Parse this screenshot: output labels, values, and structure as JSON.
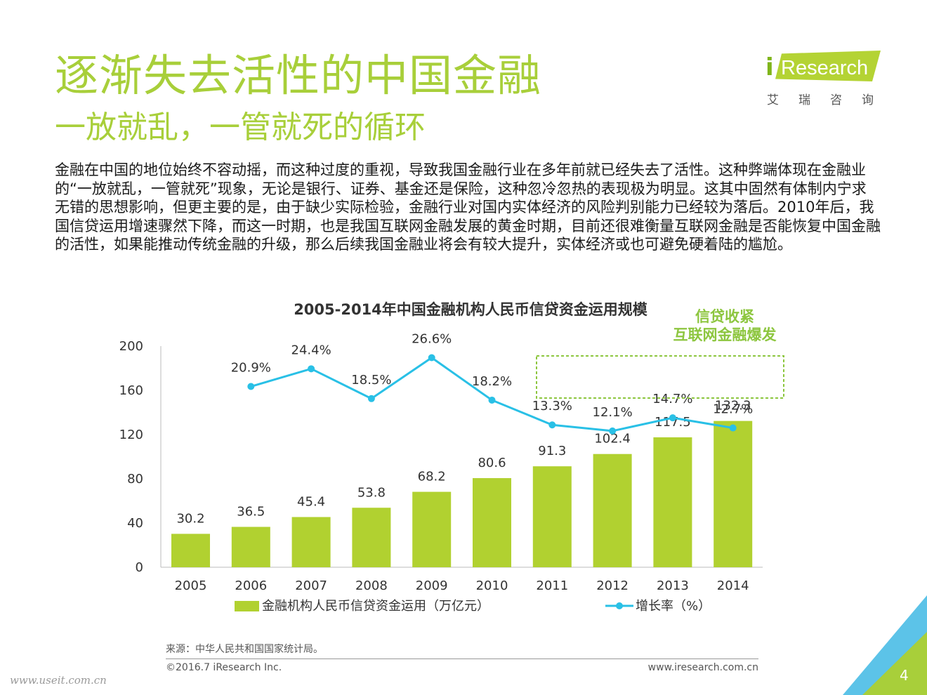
{
  "page": {
    "title": "逐渐失去活性的中国金融",
    "subtitle": "一放就乱，一管就死的循环",
    "body": "金融在中国的地位始终不容动摇，而这种过度的重视，导致我国金融行业在多年前就已经失去了活性。这种弊端体现在金融业的“一放就乱，一管就死”现象，无论是银行、证券、基金还是保险，这种忽冷忽热的表现极为明显。这其中固然有体制内宁求无错的思想影响，但更主要的是，由于缺少实际检验，金融行业对国内实体经济的风险判别能力已经较为落后。2010年后，我国信贷运用增速骤然下降，而这一时期，也是我国互联网金融发展的黄金时期，目前还很难衡量互联网金融是否能恢复中国金融的活性，如果能推动传统金融的升级，那么后续我国金融业将会有较大提升，实体经济或也可避免硬着陆的尴尬。",
    "page_number": "4"
  },
  "logo": {
    "brand_prefix": "i",
    "brand_word": "Research",
    "chinese_name": "艾瑞咨询"
  },
  "chart_data": {
    "type": "bar",
    "title": "2005-2014年中国金融机构人民币信贷资金运用规模",
    "categories": [
      "2005",
      "2006",
      "2007",
      "2008",
      "2009",
      "2010",
      "2011",
      "2012",
      "2013",
      "2014"
    ],
    "series": [
      {
        "name": "金融机构人民币信贷资金运用（万亿元）",
        "type": "bar",
        "values": [
          30.2,
          36.5,
          45.4,
          53.8,
          68.2,
          80.6,
          91.3,
          102.4,
          117.5,
          132.3
        ],
        "labels": [
          "30.2",
          "36.5",
          "45.4",
          "53.8",
          "68.2",
          "80.6",
          "91.3",
          "102.4",
          "117.5",
          "132.3"
        ]
      },
      {
        "name": "增长率（%）",
        "type": "line",
        "values": [
          null,
          20.9,
          24.4,
          18.5,
          26.6,
          18.2,
          13.3,
          12.1,
          14.7,
          12.7
        ],
        "labels": [
          "",
          "20.9%",
          "24.4%",
          "18.5%",
          "26.6%",
          "18.2%",
          "13.3%",
          "12.1%",
          "14.7%",
          "12.7%"
        ]
      }
    ],
    "y_ticks": [
      "0",
      "40",
      "80",
      "120",
      "160",
      "200"
    ],
    "ylim": [
      0,
      200
    ],
    "annotation": [
      "信贷收紧",
      "互联网金融爆发"
    ],
    "legend_position": "bottom",
    "grid": false,
    "colors": {
      "bar": "#b1d130",
      "line": "#29c0e6",
      "annotation": "#8dc63f"
    }
  },
  "footer": {
    "source": "来源：中华人民共和国国家统计局。",
    "copyright": "©2016.7 iResearch Inc.",
    "website": "www.iresearch.com.cn",
    "watermark": "www.useit.com.cn"
  }
}
